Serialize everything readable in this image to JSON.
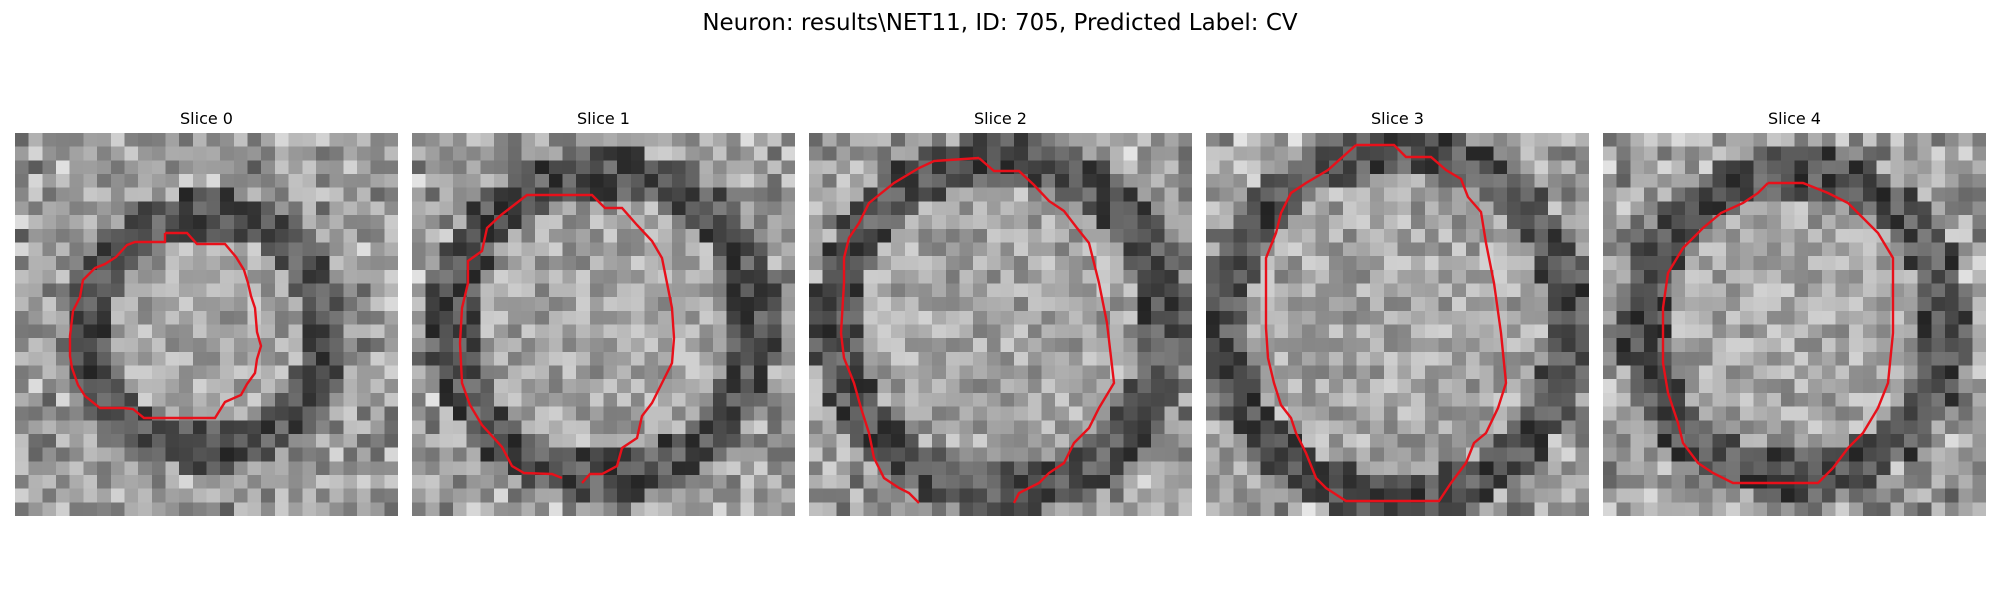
{
  "figure": {
    "title": "Neuron: results\\NET11, ID: 705, Predicted Label: CV"
  },
  "panels": [
    {
      "title": "Slice 0"
    },
    {
      "title": "Slice 1"
    },
    {
      "title": "Slice 2"
    },
    {
      "title": "Slice 3"
    },
    {
      "title": "Slice 4"
    }
  ],
  "colors": {
    "contour": "#e8101a",
    "background": "#ffffff"
  }
}
